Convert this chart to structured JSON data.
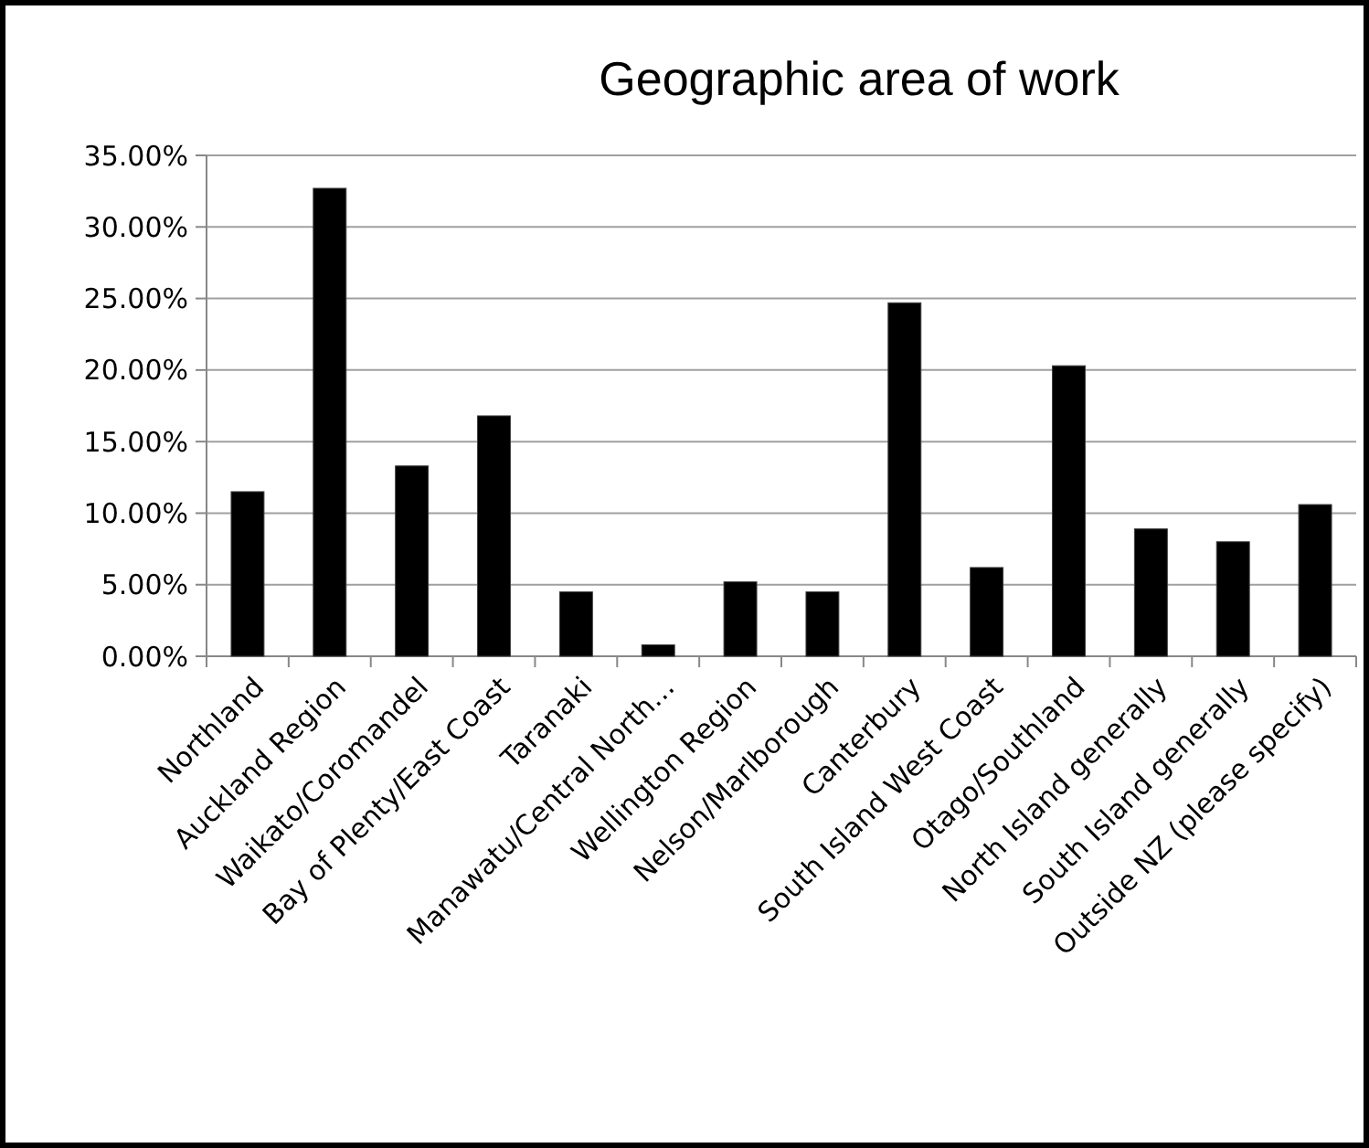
{
  "chart_data": {
    "type": "bar",
    "title": "Geographic area of work",
    "categories": [
      "Northland",
      "Auckland Region",
      "Waikato/Coromandel",
      "Bay of Plenty/East Coast",
      "Taranaki",
      "Manawatu/Central North…",
      "Wellington Region",
      "Nelson/Marlborough",
      "Canterbury",
      "South Island West Coast",
      "Otago/Southland",
      "North Island generally",
      "South Island generally",
      "Outside NZ (please specify)"
    ],
    "values": [
      11.5,
      32.7,
      13.3,
      16.8,
      4.5,
      0.8,
      5.2,
      4.5,
      24.7,
      6.2,
      20.3,
      8.9,
      8.0,
      10.6
    ],
    "color": "#000000",
    "ylim": [
      0,
      35
    ],
    "yticks": [
      {
        "value": 0,
        "label": "0.00%"
      },
      {
        "value": 5,
        "label": "5.00%"
      },
      {
        "value": 10,
        "label": "10.00%"
      },
      {
        "value": 15,
        "label": "15.00%"
      },
      {
        "value": 20,
        "label": "20.00%"
      },
      {
        "value": 25,
        "label": "25.00%"
      },
      {
        "value": 30,
        "label": "30.00%"
      },
      {
        "value": 35,
        "label": "35.00%"
      }
    ],
    "grid": "y"
  }
}
